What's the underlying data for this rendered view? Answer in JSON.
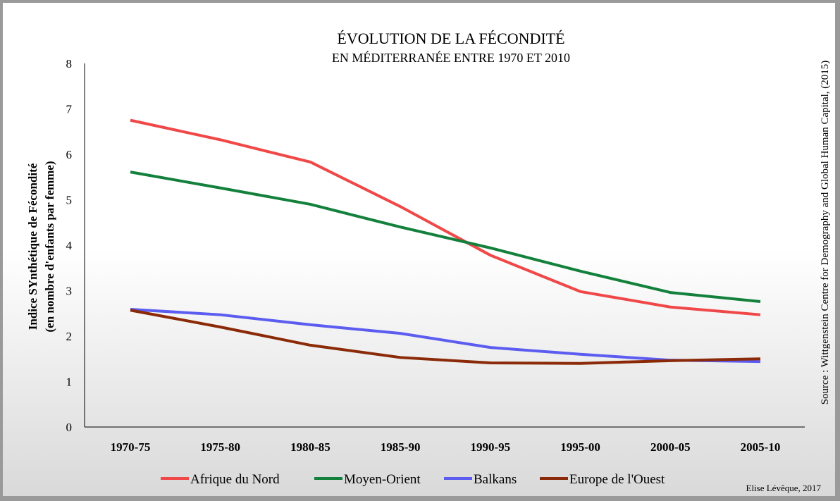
{
  "chart_data": {
    "type": "line",
    "title": "ÉVOLUTION DE LA FÉCONDITÉ",
    "subtitle": "EN MÉDITERRANÉE ENTRE 1970 ET 2010",
    "y_label": [
      "Indice SYnthétique de Fécondité",
      "(en nombre d'enfants par femme)"
    ],
    "source": "Source : Wittgenstein Centre for Demography and Global Human Capital, (2015)",
    "credit": "Elise Lévêque, 2017",
    "categories": [
      "1970-75",
      "1975-80",
      "1980-85",
      "1985-90",
      "1990-95",
      "1995-00",
      "2000-05",
      "2005-10"
    ],
    "series": [
      {
        "name": "Afrique du Nord",
        "color": "#f04848",
        "values": [
          6.75,
          6.32,
          5.83,
          4.85,
          3.78,
          2.98,
          2.64,
          2.47
        ]
      },
      {
        "name": "Moyen-Orient",
        "color": "#13803c",
        "values": [
          5.61,
          5.26,
          4.9,
          4.4,
          3.94,
          3.43,
          2.96,
          2.76
        ]
      },
      {
        "name": "Balkans",
        "color": "#5c5cf0",
        "values": [
          2.59,
          2.47,
          2.25,
          2.06,
          1.75,
          1.6,
          1.47,
          1.44
        ]
      },
      {
        "name": "Europe de l'Ouest",
        "color": "#8b2a08",
        "values": [
          2.57,
          2.2,
          1.8,
          1.53,
          1.41,
          1.4,
          1.46,
          1.5
        ]
      }
    ],
    "ylim": [
      0,
      8
    ],
    "yticks": [
      0,
      1,
      2,
      3,
      4,
      5,
      6,
      7,
      8
    ],
    "legend": "bottom"
  }
}
